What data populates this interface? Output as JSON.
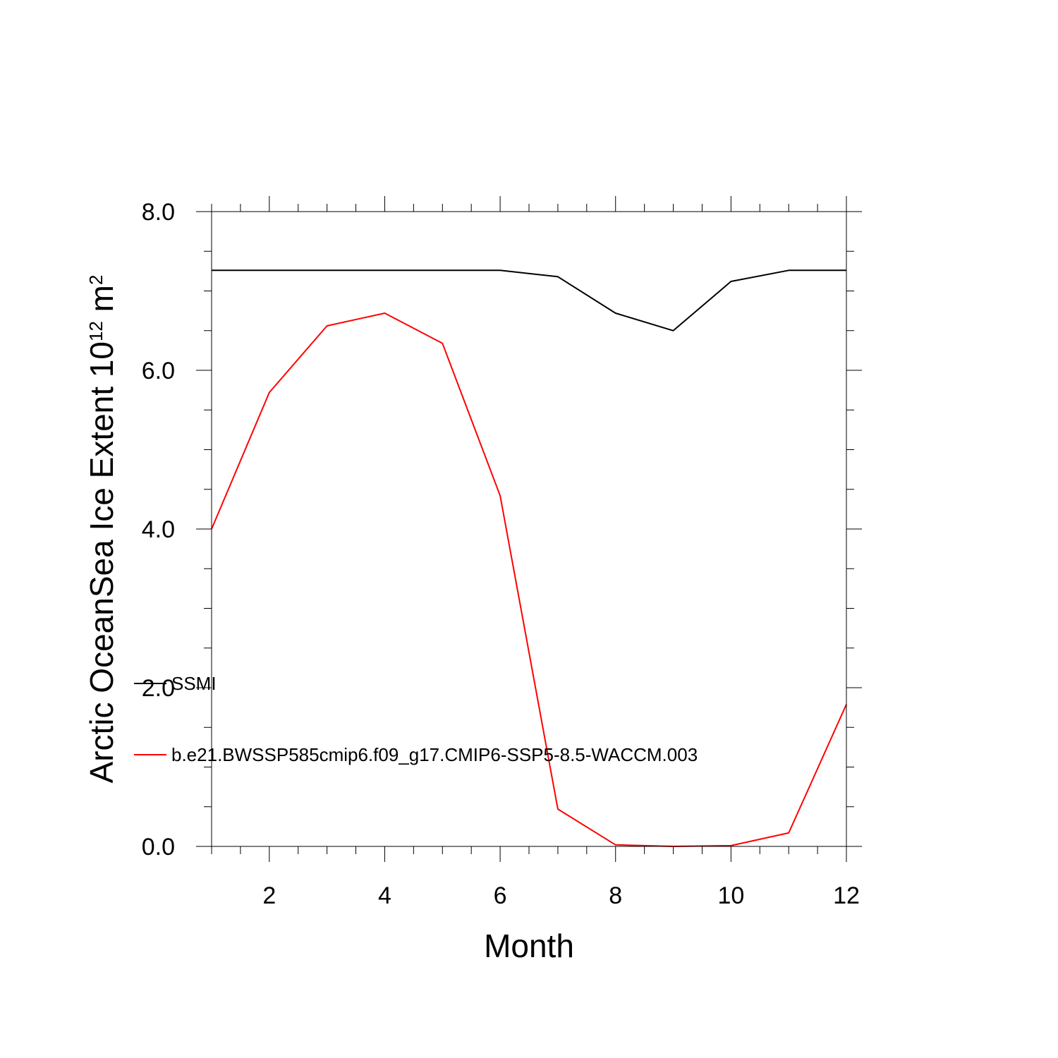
{
  "chart_data": {
    "type": "line",
    "xlabel": "Month",
    "ylabel_main": "Arctic OceanSea Ice Extent 10",
    "ylabel_exp1": "12",
    "ylabel_unit": " m",
    "ylabel_exp2": "2",
    "xlim": [
      1,
      12
    ],
    "ylim": [
      0,
      8
    ],
    "x_ticks": [
      2,
      4,
      6,
      8,
      10,
      12
    ],
    "y_ticks": [
      0,
      2,
      4,
      6,
      8
    ],
    "x_tick_labels": [
      "2",
      "4",
      "6",
      "8",
      "10",
      "12"
    ],
    "y_tick_labels": [
      "0.0",
      "2.0",
      "4.0",
      "6.0",
      "8.0"
    ],
    "grid": false,
    "legend_position": "lower-left",
    "x": [
      1,
      2,
      3,
      4,
      5,
      6,
      7,
      8,
      9,
      10,
      11,
      12
    ],
    "series": [
      {
        "name": "SSMI",
        "color": "#000000",
        "values": [
          7.26,
          7.26,
          7.26,
          7.26,
          7.26,
          7.26,
          7.18,
          6.72,
          6.5,
          7.12,
          7.26,
          7.26
        ]
      },
      {
        "name": "b.e21.BWSSP585cmip6.f09_g17.CMIP6-SSP5-8.5-WACCM.003",
        "color": "#ff0000",
        "values": [
          4.0,
          5.72,
          6.56,
          6.72,
          6.34,
          4.42,
          0.47,
          0.02,
          0.0,
          0.01,
          0.17,
          1.79
        ]
      }
    ]
  }
}
